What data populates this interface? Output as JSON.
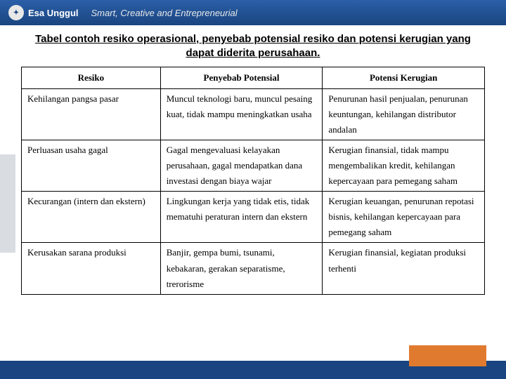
{
  "header": {
    "logo_glyph": "⬤",
    "brand": "Esa Unggul",
    "tagline": "Smart, Creative and Entrepreneurial"
  },
  "title": "Tabel contoh resiko operasional, penyebab potensial resiko dan potensi kerugian yang dapat diderita perusahaan.",
  "table": {
    "columns": [
      "Resiko",
      "Penyebab Potensial",
      "Potensi Kerugian"
    ],
    "col_widths": [
      "30%",
      "35%",
      "35%"
    ],
    "rows": [
      [
        "Kehilangan pangsa pasar",
        "Muncul teknologi baru, muncul pesaing kuat, tidak mampu meningkatkan usaha",
        "Penurunan hasil penjualan, penurunan keuntungan, kehilangan distributor andalan"
      ],
      [
        "Perluasan usaha gagal",
        "Gagal mengevaluasi kelayakan perusahaan, gagal mendapatkan dana investasi dengan biaya wajar",
        "Kerugian finansial, tidak mampu mengembalikan kredit, kehilangan kepercayaan para pemegang saham"
      ],
      [
        "Kecurangan (intern dan ekstern)",
        "Lingkungan kerja yang tidak etis, tidak mematuhi peraturan intern dan ekstern",
        "Kerugian keuangan, penurunan repotasi bisnis, kehilangan kepercayaan para pemegang saham"
      ],
      [
        "Kerusakan sarana produksi",
        "Banjir, gempa bumi, tsunami, kebakaran, gerakan separatisme, trerorisme",
        "Kerugian finansial, kegiatan produksi terhenti"
      ]
    ],
    "header_fontsize": 13,
    "cell_fontsize": 13,
    "border_color": "#000000",
    "background": "#ffffff"
  },
  "colors": {
    "header_bg_top": "#2b5fa8",
    "header_bg_bottom": "#1a4580",
    "footer_bg": "#1a4580",
    "accent_orange": "#e07a2e",
    "stripe_gray": "#d9dde2"
  }
}
